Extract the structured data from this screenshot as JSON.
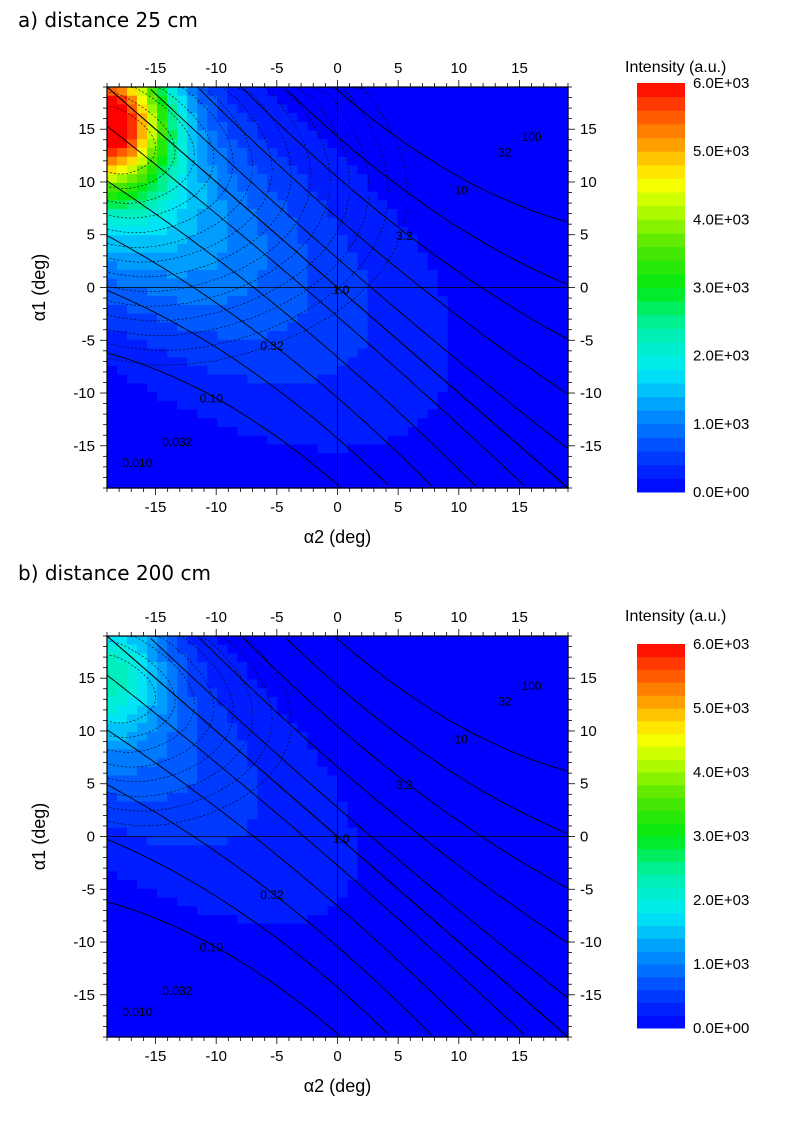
{
  "chart_data": [
    {
      "type": "heatmap",
      "title": "a) distance 25 cm",
      "xlabel": "α2 (deg)",
      "ylabel": "α1 (deg)",
      "xlim": [
        -19,
        19
      ],
      "ylim": [
        -19,
        19
      ],
      "xticks": [
        "-15",
        "-10",
        "-5",
        "0",
        "5",
        "10",
        "15"
      ],
      "xtick_values": [
        -15,
        -10,
        -5,
        0,
        5,
        10,
        15
      ],
      "yticks": [
        "15",
        "10",
        "5",
        "0",
        "-5",
        "-10",
        "-15"
      ],
      "ytick_values": [
        15,
        10,
        5,
        0,
        -5,
        -10,
        -15
      ],
      "colorbar": {
        "title": "Intensity (a.u.)",
        "min": 0,
        "max": 6000,
        "labels": [
          "6.0E+03",
          "5.0E+03",
          "4.0E+03",
          "3.0E+03",
          "2.0E+03",
          "1.0E+03",
          "0.0E+00"
        ],
        "label_values": [
          6000,
          5000,
          4000,
          3000,
          2000,
          1000,
          0
        ]
      },
      "peak": {
        "x": -18.5,
        "y": 16,
        "value": 6000
      },
      "contour_labels": [
        {
          "text": "100",
          "x": 16,
          "y": 14.2
        },
        {
          "text": "32",
          "x": 13.8,
          "y": 12.7
        },
        {
          "text": "10",
          "x": 10.2,
          "y": 9.1
        },
        {
          "text": "3.2",
          "x": 5.5,
          "y": 4.8
        },
        {
          "text": "1.0",
          "x": 0.3,
          "y": -0.3
        },
        {
          "text": "0.32",
          "x": -5.4,
          "y": -5.6
        },
        {
          "text": "0.10",
          "x": -10.4,
          "y": -10.6
        },
        {
          "text": "0.032",
          "x": -13.2,
          "y": -14.7
        },
        {
          "text": "0.010",
          "x": -16.5,
          "y": -16.7
        }
      ]
    },
    {
      "type": "heatmap",
      "title": "b) distance 200 cm",
      "xlabel": "α2 (deg)",
      "ylabel": "α1 (deg)",
      "xlim": [
        -19,
        19
      ],
      "ylim": [
        -19,
        19
      ],
      "xticks": [
        "-15",
        "-10",
        "-5",
        "0",
        "5",
        "10",
        "15"
      ],
      "xtick_values": [
        -15,
        -10,
        -5,
        0,
        5,
        10,
        15
      ],
      "yticks": [
        "15",
        "10",
        "5",
        "0",
        "-5",
        "-10",
        "-15"
      ],
      "ytick_values": [
        15,
        10,
        5,
        0,
        -5,
        -10,
        -15
      ],
      "colorbar": {
        "title": "Intensity (a.u.)",
        "min": 0,
        "max": 6000,
        "labels": [
          "6.0E+03",
          "5.0E+03",
          "4.0E+03",
          "3.0E+03",
          "2.0E+03",
          "1.0E+03",
          "0.0E+00"
        ],
        "label_values": [
          6000,
          5000,
          4000,
          3000,
          2000,
          1000,
          0
        ]
      },
      "peak": {
        "x": -18,
        "y": 17,
        "value": 3000
      },
      "contour_labels": [
        {
          "text": "100",
          "x": 16,
          "y": 14.2
        },
        {
          "text": "32",
          "x": 13.8,
          "y": 12.7
        },
        {
          "text": "10",
          "x": 10.2,
          "y": 9.1
        },
        {
          "text": "3.2",
          "x": 5.5,
          "y": 4.8
        },
        {
          "text": "1.0",
          "x": 0.3,
          "y": -0.3
        },
        {
          "text": "0.32",
          "x": -5.4,
          "y": -5.6
        },
        {
          "text": "0.10",
          "x": -10.4,
          "y": -10.6
        },
        {
          "text": "0.032",
          "x": -13.2,
          "y": -14.7
        },
        {
          "text": "0.010",
          "x": -16.5,
          "y": -16.7
        }
      ]
    }
  ]
}
